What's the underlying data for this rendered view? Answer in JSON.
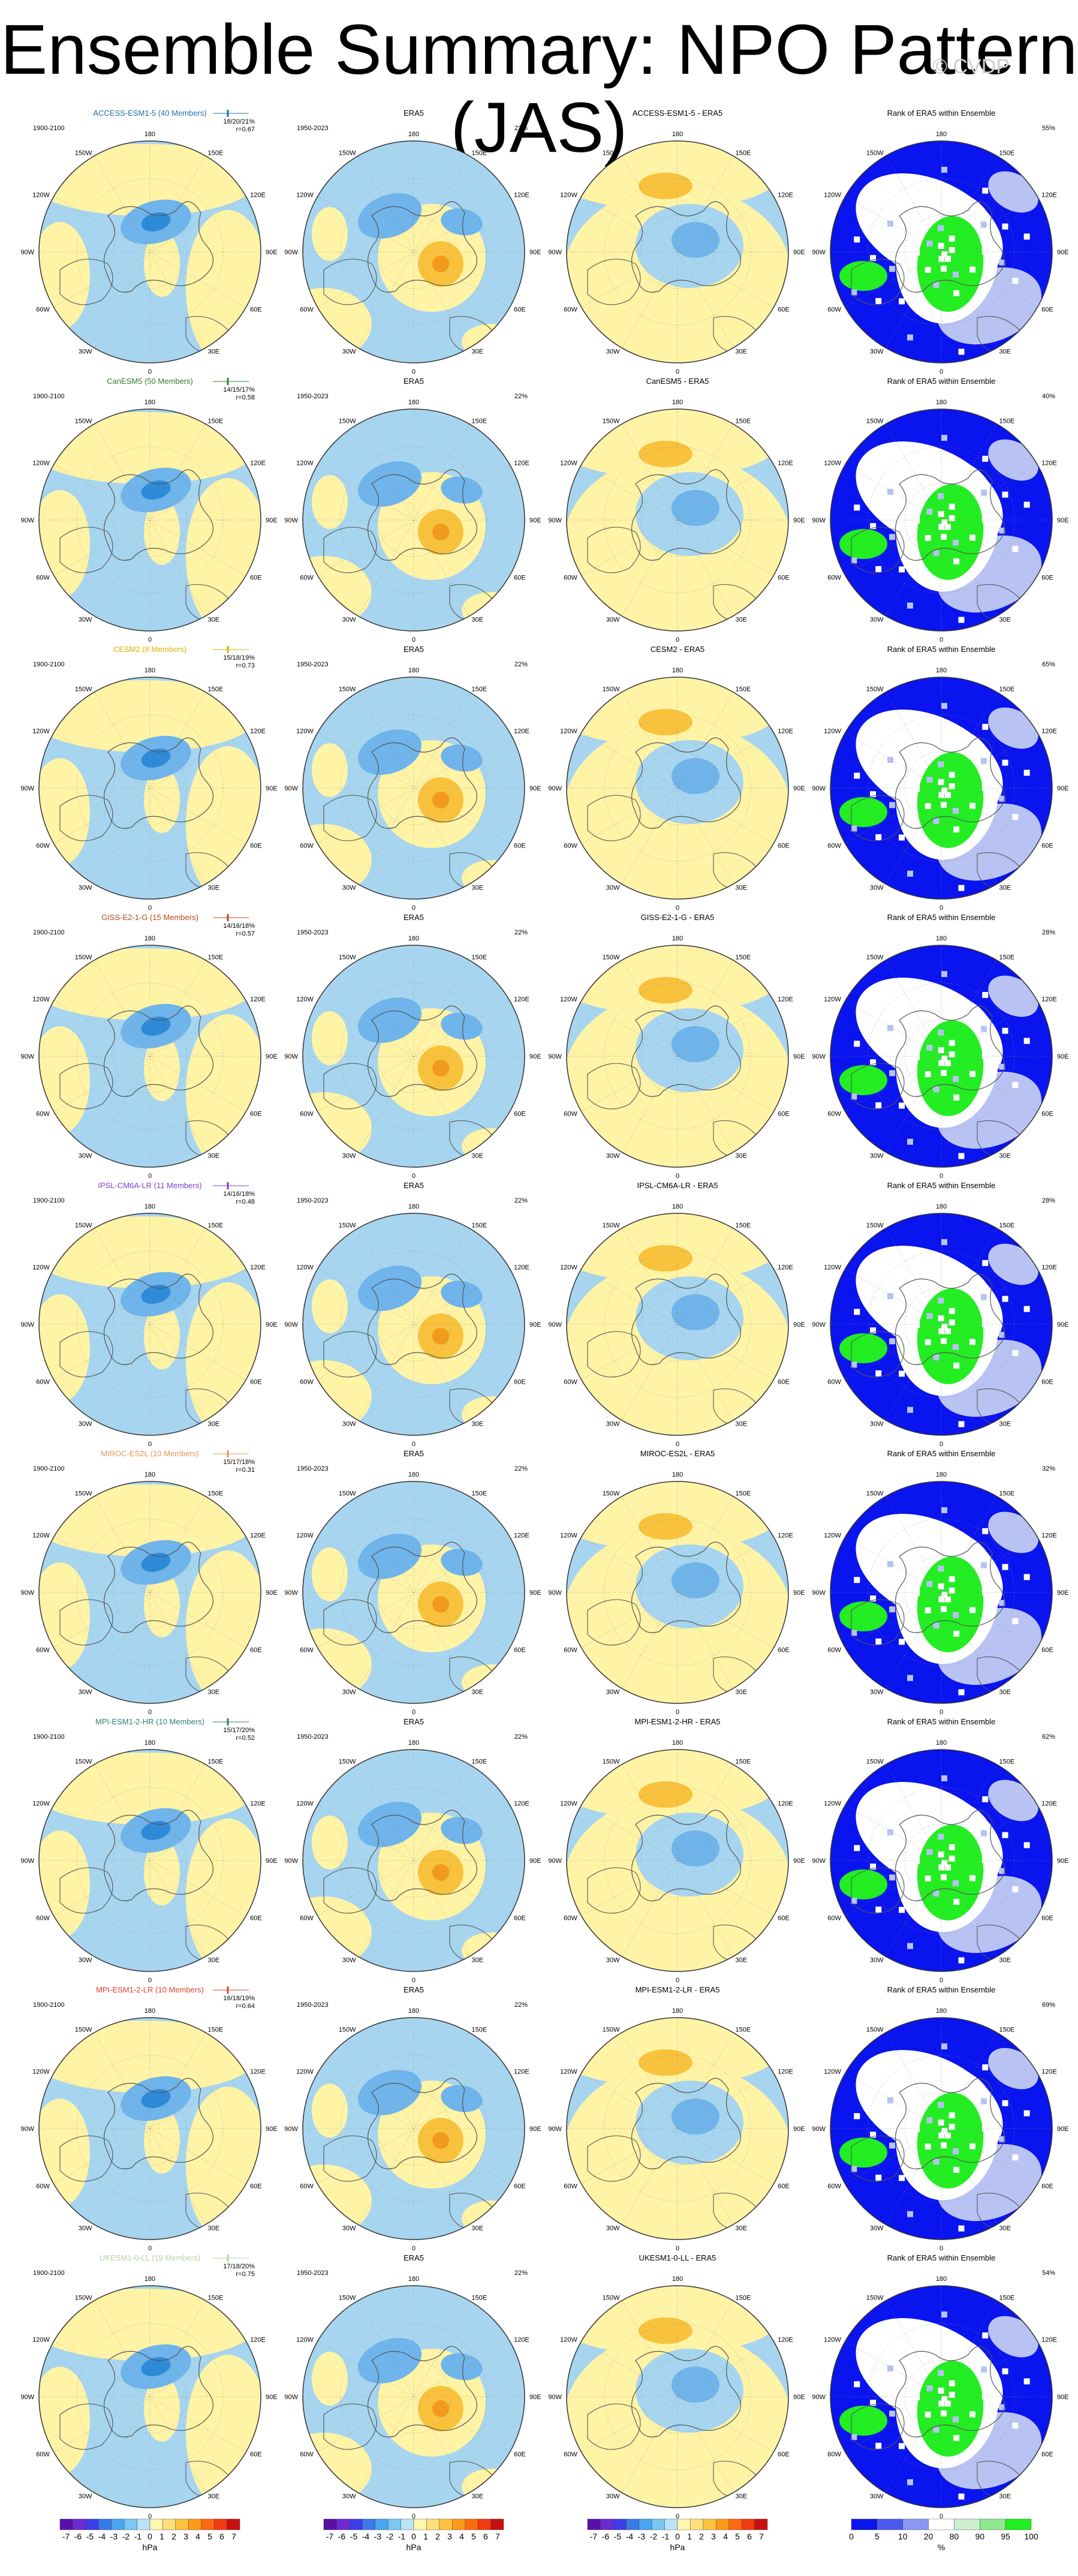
{
  "title": "Ensemble Summary: NPO Pattern (JAS)",
  "watermark": "© CVDP",
  "era5_label": "ERA5",
  "era5_period": "1950-2023",
  "model_period": "1900-2100",
  "rank_title": "Rank of ERA5 within Ensemble",
  "tick_labels": {
    "top": "180",
    "bottom": "0",
    "left": [
      "150W",
      "120W",
      "90W",
      "60W",
      "30W"
    ],
    "right": [
      "150E",
      "120E",
      "90E",
      "60E",
      "30E"
    ]
  },
  "colors": {
    "pos1": "#fff3a6",
    "pos2": "#f9c23c",
    "pos3": "#f29a1c",
    "neg1": "#a7d5ef",
    "neg2": "#6fb4ea",
    "neg3": "#2d8ad8",
    "rank_low": "#0a14ee",
    "rank_mid": "#b8c3f3",
    "rank_high": "#22ee22",
    "rank_white": "#ffffff"
  },
  "rows": [
    {
      "model": "ACCESS-ESM1-5 (40 Members)",
      "model_color": "#1f6fa8",
      "stats": "18/20/21%",
      "r": "r=0.67",
      "era5_pct": "22%",
      "diff_title": "ACCESS-ESM1-5 - ERA5",
      "rank_pct": "55%"
    },
    {
      "model": "CanESM5 (50 Members)",
      "model_color": "#2e7d32",
      "stats": "14/15/17%",
      "r": "r=0.58",
      "era5_pct": "22%",
      "diff_title": "CanESM5 - ERA5",
      "rank_pct": "40%"
    },
    {
      "model": "CESM2 (8 Members)",
      "model_color": "#d8b400",
      "stats": "15/18/19%",
      "r": "r=0.73",
      "era5_pct": "22%",
      "diff_title": "CESM2 - ERA5",
      "rank_pct": "65%"
    },
    {
      "model": "GISS-E2-1-G (15 Members)",
      "model_color": "#b44a1a",
      "stats": "14/16/18%",
      "r": "r=0.57",
      "era5_pct": "22%",
      "diff_title": "GISS-E2-1-G - ERA5",
      "rank_pct": "28%"
    },
    {
      "model": "IPSL-CM6A-LR (11 Members)",
      "model_color": "#7b3fd6",
      "stats": "14/16/18%",
      "r": "r=0.48",
      "era5_pct": "22%",
      "diff_title": "IPSL-CM6A-LR - ERA5",
      "rank_pct": "28%"
    },
    {
      "model": "MIROC-ES2L (10 Members)",
      "model_color": "#e09a5a",
      "stats": "15/17/18%",
      "r": "r=0.31",
      "era5_pct": "22%",
      "diff_title": "MIROC-ES2L - ERA5",
      "rank_pct": "32%"
    },
    {
      "model": "MPI-ESM1-2-HR (10 Members)",
      "model_color": "#2f7f7a",
      "stats": "15/17/20%",
      "r": "r=0.52",
      "era5_pct": "22%",
      "diff_title": "MPI-ESM1-2-HR - ERA5",
      "rank_pct": "62%"
    },
    {
      "model": "MPI-ESM1-2-LR (10 Members)",
      "model_color": "#e0422a",
      "stats": "16/18/19%",
      "r": "r=0.64",
      "era5_pct": "22%",
      "diff_title": "MPI-ESM1-2-LR - ERA5",
      "rank_pct": "69%"
    },
    {
      "model": "UKESM1-0-LL (19 Members)",
      "model_color": "#b9cfa8",
      "stats": "17/18/20%",
      "r": "r=0.75",
      "era5_pct": "22%",
      "diff_title": "UKESM1-0-LL - ERA5",
      "rank_pct": "54%"
    }
  ],
  "colorbars": [
    {
      "labels": [
        "-7",
        "-6",
        "-5",
        "-4",
        "-3",
        "-2",
        "-1",
        "0",
        "1",
        "2",
        "3",
        "4",
        "5",
        "6",
        "7"
      ],
      "unit": "hPa"
    },
    {
      "labels": [
        "-7",
        "-6",
        "-5",
        "-4",
        "-3",
        "-2",
        "-1",
        "0",
        "1",
        "2",
        "3",
        "4",
        "5",
        "6",
        "7"
      ],
      "unit": "hPa"
    },
    {
      "labels": [
        "-7",
        "-6",
        "-5",
        "-4",
        "-3",
        "-2",
        "-1",
        "0",
        "1",
        "2",
        "3",
        "4",
        "5",
        "6",
        "7"
      ],
      "unit": "hPa"
    },
    {
      "labels": [
        "0",
        "5",
        "10",
        "20",
        "80",
        "90",
        "95",
        "100"
      ],
      "unit": "%"
    }
  ],
  "chart_data": {
    "type": "heatmap",
    "title": "Ensemble Summary: NPO Pattern (JAS)",
    "columns": [
      "Model ensemble pattern (1900-2100)",
      "ERA5 (1950-2023)",
      "Model - ERA5",
      "Rank of ERA5 within Ensemble"
    ],
    "projection": "north polar stereographic",
    "units": [
      "hPa",
      "hPa",
      "hPa",
      "%"
    ],
    "colorbar_levels_hPa": [
      -7,
      -6,
      -5,
      -4,
      -3,
      -2,
      -1,
      0,
      1,
      2,
      3,
      4,
      5,
      6,
      7
    ],
    "colorbar_levels_rank": [
      0,
      5,
      10,
      20,
      80,
      90,
      95,
      100
    ],
    "series": [
      {
        "name": "ACCESS-ESM1-5 (40 Members)",
        "pct_variance_explained": [
          18,
          20,
          21
        ],
        "pattern_correlation": 0.67,
        "rank_pct": 55
      },
      {
        "name": "CanESM5 (50 Members)",
        "pct_variance_explained": [
          14,
          15,
          17
        ],
        "pattern_correlation": 0.58,
        "rank_pct": 40
      },
      {
        "name": "CESM2 (8 Members)",
        "pct_variance_explained": [
          15,
          18,
          19
        ],
        "pattern_correlation": 0.73,
        "rank_pct": 65
      },
      {
        "name": "GISS-E2-1-G (15 Members)",
        "pct_variance_explained": [
          14,
          16,
          18
        ],
        "pattern_correlation": 0.57,
        "rank_pct": 28
      },
      {
        "name": "IPSL-CM6A-LR (11 Members)",
        "pct_variance_explained": [
          14,
          16,
          18
        ],
        "pattern_correlation": 0.48,
        "rank_pct": 28
      },
      {
        "name": "MIROC-ES2L (10 Members)",
        "pct_variance_explained": [
          15,
          17,
          18
        ],
        "pattern_correlation": 0.31,
        "rank_pct": 32
      },
      {
        "name": "MPI-ESM1-2-HR (10 Members)",
        "pct_variance_explained": [
          15,
          17,
          20
        ],
        "pattern_correlation": 0.52,
        "rank_pct": 62
      },
      {
        "name": "MPI-ESM1-2-LR (10 Members)",
        "pct_variance_explained": [
          16,
          18,
          19
        ],
        "pattern_correlation": 0.64,
        "rank_pct": 69
      },
      {
        "name": "UKESM1-0-LL (19 Members)",
        "pct_variance_explained": [
          17,
          18,
          20
        ],
        "pattern_correlation": 0.75,
        "rank_pct": 54
      }
    ],
    "era5_pct_variance_explained": 22
  }
}
